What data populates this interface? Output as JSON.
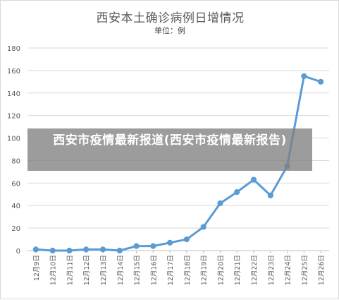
{
  "chart_data": {
    "type": "line",
    "title": "西安本土确诊病例日增情况",
    "subtitle": "单位：例",
    "categories": [
      "12月9日",
      "12月10日",
      "12月11日",
      "12月12日",
      "12月13日",
      "12月14日",
      "12月15日",
      "12月16日",
      "12月17日",
      "12月18日",
      "12月19日",
      "12月20日",
      "12月21日",
      "12月22日",
      "12月23日",
      "12月24日",
      "12月25日",
      "12月26日"
    ],
    "values": [
      1,
      0,
      0,
      1,
      1,
      0,
      4,
      4,
      7,
      10,
      21,
      42,
      52,
      63,
      49,
      75,
      155,
      150
    ],
    "ylim": [
      0,
      180
    ],
    "yticks": [
      0,
      20,
      40,
      60,
      80,
      100,
      120,
      140,
      160,
      180
    ],
    "grid": true,
    "color": "#5b9bd5"
  },
  "overlay": {
    "text": "西安市疫情最新报道(西安市疫情最新报告)"
  }
}
